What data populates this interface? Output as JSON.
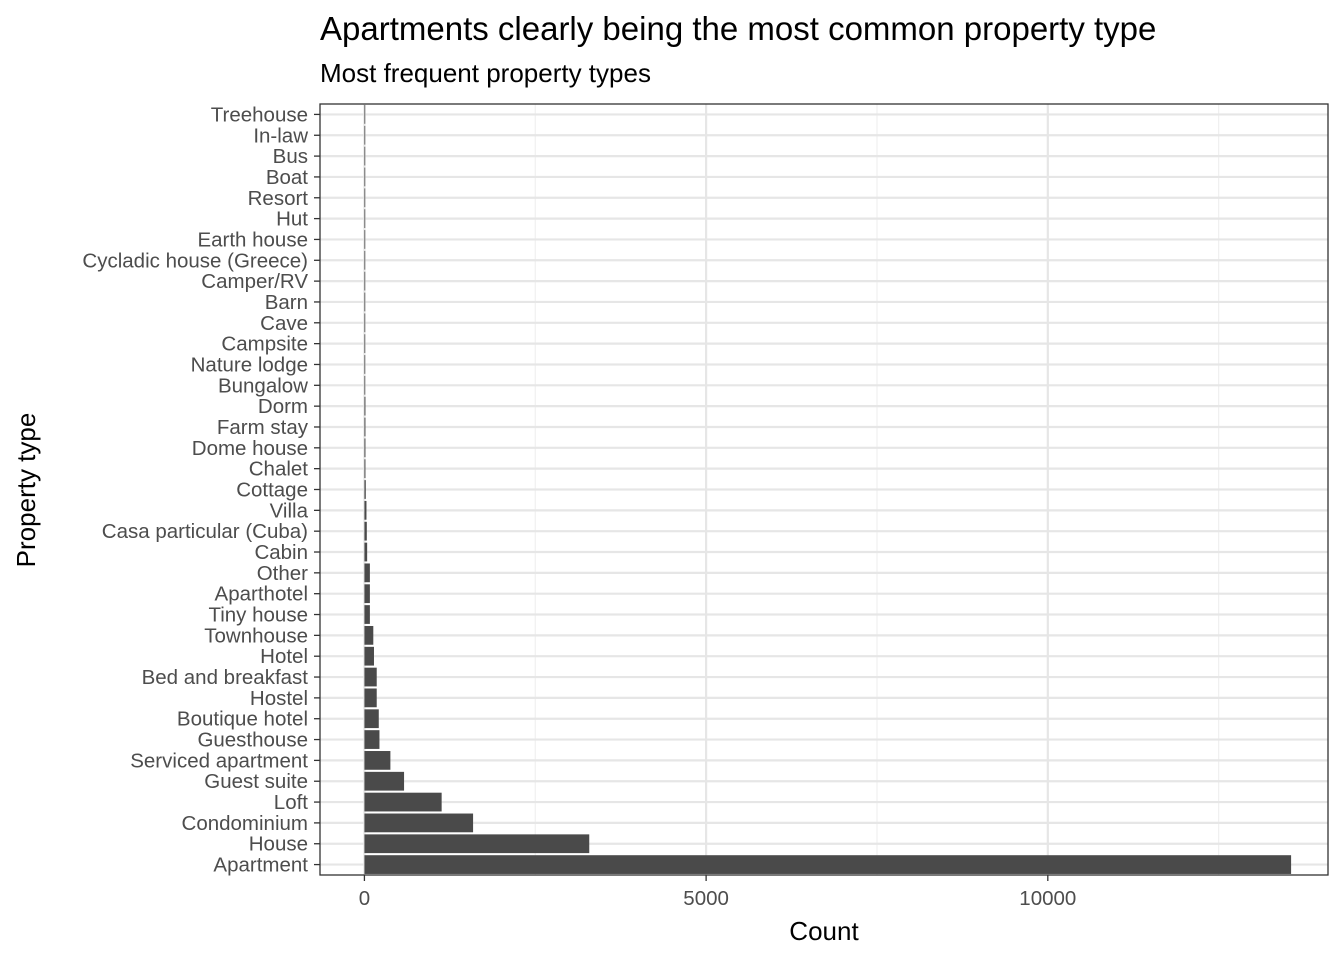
{
  "chart_data": {
    "type": "bar",
    "orientation": "horizontal",
    "title": "Apartments clearly being the most common property type",
    "subtitle": "Most frequent property types",
    "xlabel": "Count",
    "ylabel": "Property type",
    "xlim": [
      -650,
      14100
    ],
    "x_ticks": [
      0,
      5000,
      10000
    ],
    "x_tick_labels": [
      "0",
      "5000",
      "10000"
    ],
    "grid": true,
    "legend": "none",
    "bar_color": "#4a4a4a",
    "categories": [
      "Apartment",
      "House",
      "Condominium",
      "Loft",
      "Guest suite",
      "Serviced apartment",
      "Guesthouse",
      "Boutique hotel",
      "Hostel",
      "Bed and breakfast",
      "Hotel",
      "Townhouse",
      "Tiny house",
      "Aparthotel",
      "Other",
      "Cabin",
      "Casa particular (Cuba)",
      "Villa",
      "Cottage",
      "Chalet",
      "Dome house",
      "Farm stay",
      "Dorm",
      "Bungalow",
      "Nature lodge",
      "Campsite",
      "Cave",
      "Barn",
      "Camper/RV",
      "Cycladic house (Greece)",
      "Earth house",
      "Hut",
      "Resort",
      "Boat",
      "Bus",
      "In-law",
      "Treehouse"
    ],
    "values": [
      13560,
      3290,
      1590,
      1130,
      580,
      380,
      220,
      210,
      180,
      180,
      140,
      130,
      80,
      80,
      80,
      40,
      35,
      30,
      20,
      15,
      15,
      15,
      15,
      10,
      10,
      10,
      10,
      5,
      5,
      5,
      5,
      5,
      5,
      5,
      3,
      3,
      3
    ]
  }
}
